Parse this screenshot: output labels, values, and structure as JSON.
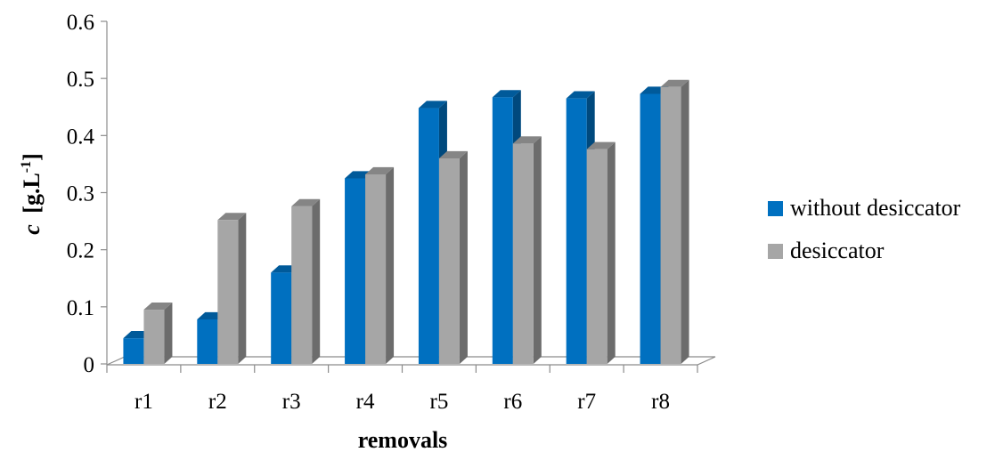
{
  "chart_data": {
    "type": "bar",
    "categories": [
      "r1",
      "r2",
      "r3",
      "r4",
      "r5",
      "r6",
      "r7",
      "r8"
    ],
    "series": [
      {
        "name": "without desiccator",
        "color": "#0070C0",
        "values": [
          0.045,
          0.078,
          0.16,
          0.325,
          0.448,
          0.467,
          0.465,
          0.473
        ]
      },
      {
        "name": "desiccator",
        "color": "#A6A6A6",
        "values": [
          0.095,
          0.252,
          0.276,
          0.332,
          0.36,
          0.386,
          0.376,
          0.485
        ]
      }
    ],
    "yticks": [
      "0",
      "0.1",
      "0.2",
      "0.3",
      "0.4",
      "0.5",
      "0.6"
    ],
    "ylim": [
      0,
      0.6
    ],
    "xlabel": "removals",
    "ylabel_main": "c",
    "ylabel_unit_prefix": "[g.L",
    "ylabel_unit_exponent": "-1",
    "ylabel_unit_suffix": "]",
    "legend_position": "right",
    "grid": false,
    "three_d": true
  }
}
